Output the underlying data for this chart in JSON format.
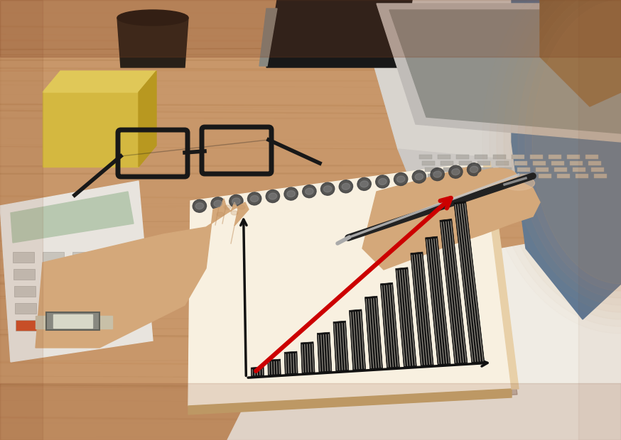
{
  "wood_color": "#c8976a",
  "wood_light": "#d4a878",
  "wood_dark": "#b07848",
  "wood_grain_colors": [
    "#a06830",
    "#c09060",
    "#b87840",
    "#8a5828"
  ],
  "notebook_color": "#f8f0e0",
  "notebook_edge": "#e8d0a8",
  "notebook_cover_edge": "#c8a870",
  "bar_color": "#111111",
  "bar_hatch_color": "#f8f0e0",
  "trend_color": "#cc0000",
  "axis_color": "#111111",
  "spiral_color": "#444444",
  "spiral_highlight": "#888888",
  "skin_color": "#d4a87a",
  "skin_dark": "#c09060",
  "skin_light": "#e0bc98",
  "watch_color": "#888880",
  "watch_face": "#d8d8c8",
  "pen_dark": "#222222",
  "pen_light": "#c8c8c8",
  "paper_color": "#f0ece4",
  "calculator_color": "#e8e4de",
  "calculator_button": "#c8c4bc",
  "calculator_button_dark": "#a8a49c",
  "calculator_display": "#b8c8b0",
  "sticky_color": "#d4b840",
  "sticky_shadow": "#b89820",
  "glasses_color": "#181818",
  "laptop_color": "#d8d4ce",
  "laptop_screen": "#b8b4ae",
  "mug_color": "#282018",
  "book_color": "#181818",
  "shirt_color": "#5a7898",
  "hair_color": "#8a6840",
  "person_skin": "#d4a070",
  "bar_values": [
    0.06,
    0.1,
    0.14,
    0.19,
    0.24,
    0.3,
    0.36,
    0.43,
    0.5,
    0.58,
    0.66,
    0.74,
    0.83,
    0.92
  ],
  "n_bars": 14
}
